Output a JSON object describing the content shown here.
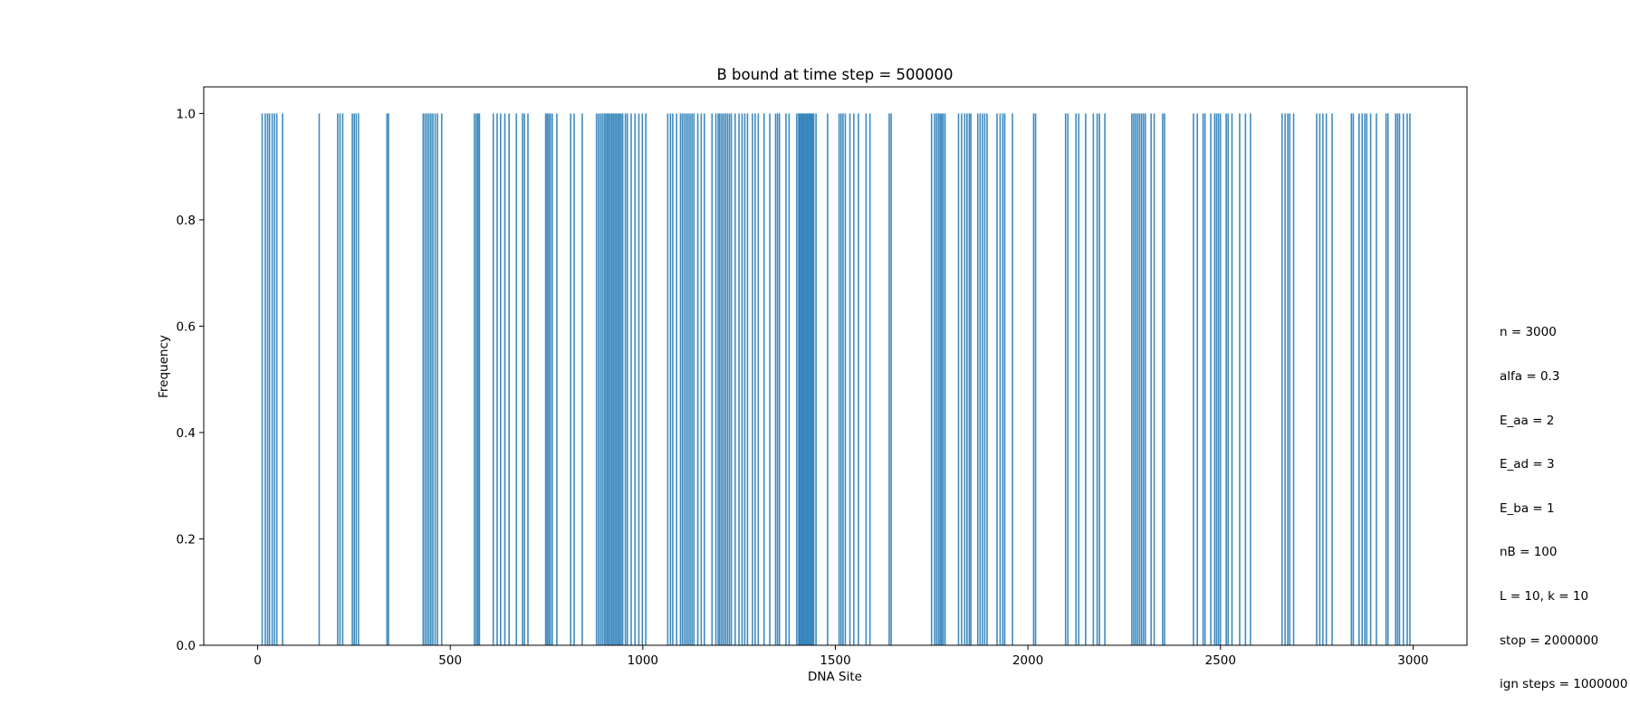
{
  "chart_data": {
    "type": "bar",
    "title": "B bound at time step = 500000",
    "xlabel": "DNA Site",
    "ylabel": "Frequency",
    "xlim": [
      -140,
      3140
    ],
    "ylim": [
      0,
      1.05
    ],
    "xticks": [
      0,
      500,
      1000,
      1500,
      2000,
      2500,
      3000
    ],
    "yticks": [
      0.0,
      0.2,
      0.4,
      0.6,
      0.8,
      1.0
    ],
    "xtick_labels": [
      "0",
      "500",
      "1000",
      "1500",
      "2000",
      "2500",
      "3000"
    ],
    "ytick_labels": [
      "0.0",
      "0.2",
      "0.4",
      "0.6",
      "0.8",
      "1.0"
    ],
    "grid": false,
    "legend": "none",
    "bar_color": "#1f77b4",
    "series": [
      {
        "values_note": "each listed DNA site has frequency 1.0; all other sites are 0",
        "y_value": 1.0,
        "x": [
          12,
          20,
          26,
          31,
          38,
          44,
          50,
          65,
          160,
          208,
          214,
          221,
          246,
          251,
          256,
          262,
          336,
          340,
          430,
          435,
          440,
          445,
          450,
          455,
          461,
          467,
          478,
          563,
          568,
          572,
          576,
          612,
          622,
          631,
          642,
          653,
          672,
          688,
          693,
          702,
          748,
          752,
          756,
          760,
          765,
          777,
          813,
          822,
          843,
          880,
          885,
          890,
          895,
          900,
          904,
          908,
          912,
          916,
          920,
          924,
          928,
          932,
          936,
          940,
          944,
          948,
          955,
          960,
          970,
          980,
          990,
          999,
          1008,
          1065,
          1072,
          1078,
          1088,
          1098,
          1103,
          1108,
          1113,
          1118,
          1123,
          1128,
          1133,
          1143,
          1152,
          1160,
          1180,
          1190,
          1196,
          1200,
          1205,
          1210,
          1215,
          1220,
          1225,
          1230,
          1240,
          1250,
          1258,
          1265,
          1272,
          1285,
          1292,
          1300,
          1315,
          1330,
          1345,
          1350,
          1355,
          1372,
          1380,
          1400,
          1405,
          1408,
          1411,
          1414,
          1417,
          1420,
          1423,
          1426,
          1429,
          1432,
          1435,
          1438,
          1441,
          1444,
          1450,
          1480,
          1510,
          1515,
          1520,
          1526,
          1538,
          1548,
          1560,
          1580,
          1590,
          1640,
          1645,
          1750,
          1758,
          1763,
          1768,
          1772,
          1776,
          1780,
          1785,
          1820,
          1828,
          1836,
          1842,
          1848,
          1852,
          1870,
          1876,
          1882,
          1888,
          1894,
          1920,
          1928,
          1935,
          1940,
          1960,
          2015,
          2020,
          2098,
          2104,
          2125,
          2132,
          2150,
          2170,
          2180,
          2186,
          2200,
          2270,
          2275,
          2280,
          2285,
          2290,
          2295,
          2300,
          2305,
          2320,
          2328,
          2350,
          2355,
          2430,
          2440,
          2455,
          2460,
          2475,
          2485,
          2490,
          2495,
          2500,
          2515,
          2520,
          2530,
          2550,
          2565,
          2578,
          2660,
          2668,
          2675,
          2680,
          2690,
          2750,
          2758,
          2766,
          2775,
          2790,
          2840,
          2845,
          2860,
          2868,
          2875,
          2880,
          2890,
          2905,
          2930,
          2935,
          2955,
          2960,
          2965,
          2975,
          2985,
          2992
        ]
      }
    ]
  },
  "annotation": {
    "lines": [
      "n = 3000",
      "alfa = 0.3",
      "E_aa = 2",
      "E_ad = 3",
      "E_ba = 1",
      "nB = 100",
      "L = 10, k = 10",
      "stop = 2000000",
      "ign steps = 1000000"
    ]
  }
}
